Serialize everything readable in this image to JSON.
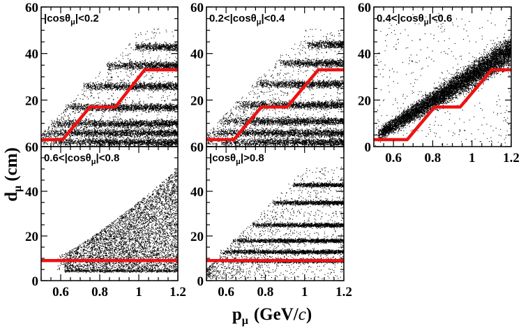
{
  "chart_data": {
    "type": "scatter",
    "xlabel": "p",
    "xlabel_sub": "μ",
    "xlabel_unit": "(GeV/",
    "xlabel_c": "c",
    "xlabel_close": ")",
    "ylabel": "d",
    "ylabel_sub": "μ",
    "ylabel_unit": "(cm)",
    "xlim": [
      0.5,
      1.2
    ],
    "ylim": [
      0,
      60
    ],
    "x_ticks": [
      "0.6",
      "0.8",
      "1",
      "1.2"
    ],
    "y_ticks": [
      "0",
      "20",
      "40",
      "60"
    ],
    "cut_line_color": "#ee1111",
    "point_color": "#000000",
    "panels": [
      {
        "label_prefix": "|cosθ",
        "label_sub": "μ",
        "label_suffix": "|<0.2",
        "cut_line": [
          [
            0.5,
            3
          ],
          [
            0.61,
            3
          ],
          [
            0.75,
            17
          ],
          [
            0.88,
            17
          ],
          [
            1.03,
            33
          ],
          [
            1.2,
            33
          ]
        ],
        "bands": [
          [
            2,
            0.6
          ],
          [
            6,
            0.56
          ],
          [
            10,
            0.6
          ],
          [
            17,
            0.67
          ],
          [
            26,
            0.76
          ],
          [
            35,
            0.88
          ],
          [
            43,
            1.02
          ]
        ]
      },
      {
        "label_prefix": "0.2<|cosθ",
        "label_sub": "μ",
        "label_suffix": "|<0.4",
        "cut_line": [
          [
            0.5,
            3
          ],
          [
            0.64,
            3
          ],
          [
            0.78,
            17
          ],
          [
            0.91,
            17
          ],
          [
            1.07,
            33
          ],
          [
            1.2,
            33
          ]
        ],
        "bands": [
          [
            2,
            0.62
          ],
          [
            6,
            0.58
          ],
          [
            11,
            0.62
          ],
          [
            18,
            0.7
          ],
          [
            27,
            0.8
          ],
          [
            36,
            0.92
          ],
          [
            44,
            1.06
          ]
        ]
      },
      {
        "label_prefix": "0.4<|cosθ",
        "label_sub": "μ",
        "label_suffix": "|<0.6",
        "cut_line": [
          [
            0.5,
            3
          ],
          [
            0.67,
            3
          ],
          [
            0.81,
            17
          ],
          [
            0.94,
            17
          ],
          [
            1.1,
            33
          ],
          [
            1.2,
            33
          ]
        ],
        "bands": []
      },
      {
        "label_prefix": "0.6<|cosθ",
        "label_sub": "μ",
        "label_suffix": "|<0.8",
        "cut_line": [
          [
            0.5,
            9
          ],
          [
            1.2,
            9
          ]
        ],
        "bands": []
      },
      {
        "label_prefix": "|cosθ",
        "label_sub": "μ",
        "label_suffix": "|>0.8",
        "cut_line": [
          [
            0.5,
            9
          ],
          [
            1.2,
            9
          ]
        ],
        "bands": [
          [
            9,
            0.6
          ],
          [
            13,
            0.62
          ],
          [
            18,
            0.68
          ],
          [
            25,
            0.78
          ],
          [
            35,
            0.88
          ],
          [
            43,
            0.98
          ]
        ]
      }
    ]
  }
}
